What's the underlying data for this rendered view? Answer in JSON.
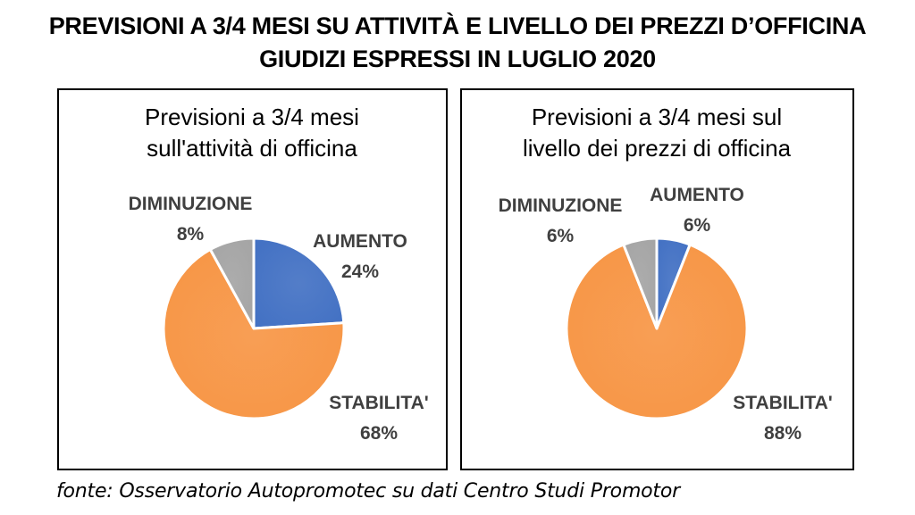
{
  "title_line1": "PREVISIONI A 3/4 MESI SU ATTIVITÀ E LIVELLO DEI PREZZI D’OFFICINA",
  "title_line2": "GIUDIZI ESPRESSI IN LUGLIO 2020",
  "source": "fonte: Osservatorio Autopromotec su dati Centro Studi Promotor",
  "chart_data": [
    {
      "type": "pie",
      "title": [
        "Previsioni a 3/4 mesi",
        "sull'attività di officina"
      ],
      "categories": [
        "AUMENTO",
        "STABILITA'",
        "DIMINUZIONE"
      ],
      "values": [
        24,
        68,
        8
      ],
      "value_labels": [
        "24%",
        "68%",
        "8%"
      ],
      "colors": [
        "#4472C4",
        "#F79646",
        "#A5A5A5"
      ],
      "start_angle_deg": 0,
      "direction": "clockwise",
      "legend": "none"
    },
    {
      "type": "pie",
      "title": [
        "Previsioni a 3/4 mesi sul",
        "livello dei prezzi di officina"
      ],
      "categories": [
        "AUMENTO",
        "STABILITA'",
        "DIMINUZIONE"
      ],
      "values": [
        6,
        88,
        6
      ],
      "value_labels": [
        "6%",
        "88%",
        "6%"
      ],
      "colors": [
        "#4472C4",
        "#F79646",
        "#A5A5A5"
      ],
      "start_angle_deg": 0,
      "direction": "clockwise",
      "legend": "none"
    }
  ]
}
